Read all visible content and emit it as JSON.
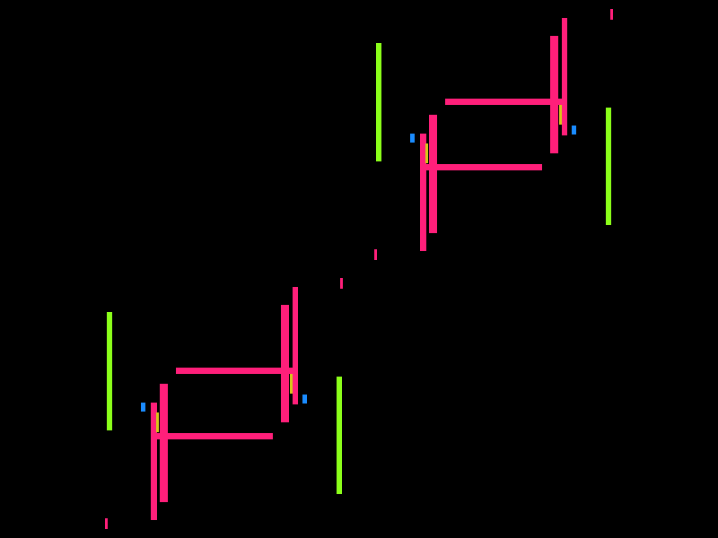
{
  "canvas": {
    "background": "#000000"
  },
  "colors": {
    "pink": "#ff1f7a",
    "green": "#8cff1a",
    "blue": "#1a8cff",
    "yellow": "#d8c817"
  }
}
